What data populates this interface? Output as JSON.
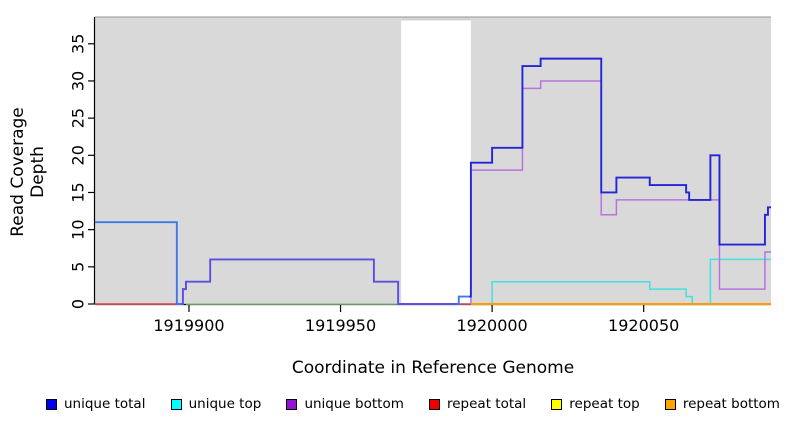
{
  "chart_data": {
    "type": "line",
    "subtype": "step-coverage",
    "title": "",
    "xlabel": "Coordinate in Reference Genome",
    "ylabel": "Read Coverage Depth",
    "xlim": [
      1919869,
      1920092
    ],
    "ylim": [
      0,
      38.6
    ],
    "xticks": [
      1919900,
      1919950,
      1920000,
      1920050
    ],
    "yticks": [
      0,
      5,
      10,
      15,
      20,
      25,
      30,
      35
    ],
    "grid": "off",
    "legend_position": "bottom",
    "plot_bg": "#ffffff",
    "shade_color": "#d9d9d9",
    "top_border_color": "#a9a9a9",
    "shaded_regions": [
      [
        1919869,
        1919970
      ],
      [
        1919993,
        1920092
      ]
    ],
    "gap_region": [
      1919970,
      1919993
    ],
    "series": [
      {
        "name": "unique top",
        "legend_color": "#00ffff",
        "lines": [
          {
            "color": "#45e0e0",
            "width": 1.5,
            "steps": [
              [
                1919869,
                11
              ],
              [
                1919896,
                0
              ]
            ],
            "end": 1919897
          },
          {
            "color": "#45e0e0",
            "width": 1.5,
            "steps": [
              [
                1919999.5,
                0
              ],
              [
                1920000,
                3
              ],
              [
                1920052,
                2
              ],
              [
                1920064,
                1
              ],
              [
                1920066,
                0
              ],
              [
                1920072,
                6
              ]
            ],
            "end": 1920092
          }
        ]
      },
      {
        "name": "unique bottom",
        "legend_color": "#9412d3",
        "lines": [
          {
            "color": "#b873e0",
            "width": 1.5,
            "steps": [
              [
                1919869,
                0
              ],
              [
                1919898,
                2
              ],
              [
                1919899,
                3
              ],
              [
                1919907,
                6
              ],
              [
                1919961,
                3
              ],
              [
                1919969,
                0
              ],
              [
                1919993,
                18
              ],
              [
                1920010,
                29
              ],
              [
                1920016,
                30
              ],
              [
                1920036,
                12
              ],
              [
                1920041,
                14
              ],
              [
                1920075,
                2
              ],
              [
                1920090,
                7
              ]
            ],
            "end": 1920092
          }
        ]
      },
      {
        "name": "repeat top",
        "legend_color": "#ffff00",
        "lines": [
          {
            "color": "#8ecb8e",
            "width": 1.4,
            "steps": [
              [
                1919899,
                0
              ]
            ],
            "end": 1919989
          }
        ]
      },
      {
        "name": "repeat total",
        "legend_color": "#ee0000",
        "lines": [
          {
            "color": "#e25050",
            "width": 1.4,
            "steps": [
              [
                1919869,
                0
              ]
            ],
            "end": 1919896
          },
          {
            "color": "#d8506a",
            "width": 1.4,
            "steps": [
              [
                1919989,
                0
              ]
            ],
            "end": 1919993
          }
        ]
      },
      {
        "name": "repeat bottom",
        "legend_color": "#ffa500",
        "lines": [
          {
            "color": "#ff9d00",
            "width": 2.0,
            "steps": [
              [
                1919993,
                0
              ]
            ],
            "end": 1920092
          }
        ]
      },
      {
        "name": "unique total",
        "legend_color": "#0000ee",
        "lines": [
          {
            "color": "#3e78ea",
            "width": 1.9,
            "steps": [
              [
                1919869,
                11
              ],
              [
                1919896,
                0
              ]
            ],
            "end": 1919898
          },
          {
            "color": "#5a50e2",
            "width": 1.9,
            "steps": [
              [
                1919897.5,
                0
              ],
              [
                1919898,
                2
              ],
              [
                1919899,
                3
              ],
              [
                1919907,
                6
              ],
              [
                1919961,
                3
              ],
              [
                1919969,
                0
              ]
            ],
            "end": 1919989
          },
          {
            "color": "#3e78ea",
            "width": 1.9,
            "steps": [
              [
                1919988.5,
                0
              ],
              [
                1919989,
                1
              ]
            ],
            "end": 1919993
          },
          {
            "color": "#2424d8",
            "width": 1.9,
            "steps": [
              [
                1919992.5,
                1
              ],
              [
                1919993,
                19
              ],
              [
                1920000,
                21
              ],
              [
                1920010,
                32
              ],
              [
                1920016,
                33
              ],
              [
                1920036,
                15
              ],
              [
                1920041,
                17
              ],
              [
                1920052,
                16
              ],
              [
                1920064,
                15
              ],
              [
                1920065,
                14
              ],
              [
                1920072,
                20
              ],
              [
                1920075,
                8
              ],
              [
                1920090,
                12
              ],
              [
                1920091,
                13
              ]
            ],
            "end": 1920092
          }
        ]
      }
    ]
  },
  "legend": {
    "items": [
      {
        "label": "unique total",
        "color": "#0000ee"
      },
      {
        "label": "unique top",
        "color": "#00ffff"
      },
      {
        "label": "unique bottom",
        "color": "#9412d3"
      },
      {
        "label": "repeat total",
        "color": "#ee0000"
      },
      {
        "label": "repeat top",
        "color": "#ffff00"
      },
      {
        "label": "repeat bottom",
        "color": "#ffa500"
      }
    ]
  }
}
